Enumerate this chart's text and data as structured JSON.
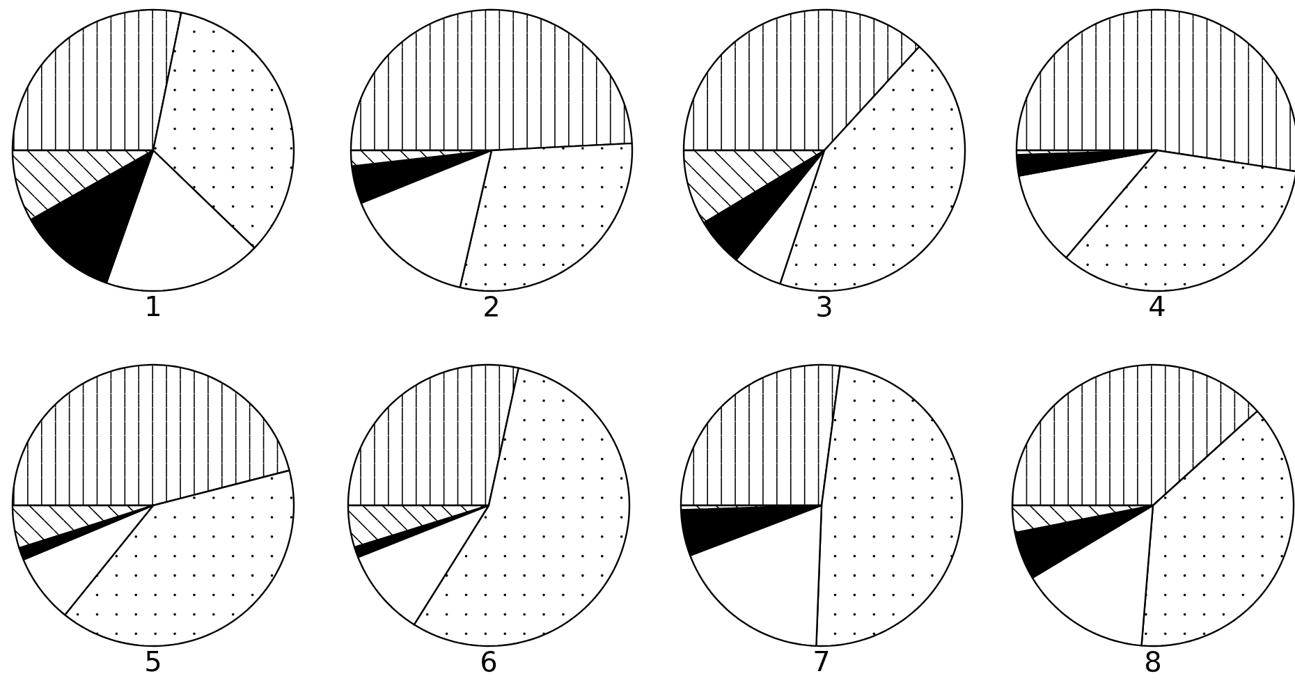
{
  "chart_data": [
    {
      "type": "pie",
      "title": "1",
      "categories": [
        null,
        null,
        null,
        null,
        null
      ],
      "values": [
        28.2,
        34.0,
        18.2,
        11.4,
        8.2
      ],
      "colors": [
        "#ffffff",
        "#ffffff",
        "#ffffff",
        "#000000",
        "#ffffff"
      ]
    },
    {
      "type": "pie",
      "title": "2",
      "categories": [
        null,
        null,
        null,
        null,
        null
      ],
      "values": [
        49.2,
        29.4,
        15.3,
        4.3,
        1.8
      ],
      "colors": [
        "#ffffff",
        "#ffffff",
        "#ffffff",
        "#000000",
        "#ffffff"
      ]
    },
    {
      "type": "pie",
      "title": "3",
      "categories": [
        null,
        null,
        null,
        null,
        null
      ],
      "values": [
        36.8,
        43.3,
        5.7,
        5.6,
        8.6
      ],
      "colors": [
        "#ffffff",
        "#ffffff",
        "#ffffff",
        "#000000",
        "#ffffff"
      ]
    },
    {
      "type": "pie",
      "title": "4",
      "categories": [
        null,
        null,
        null,
        null,
        null
      ],
      "values": [
        52.4,
        33.8,
        10.9,
        2.4,
        0.5
      ],
      "colors": [
        "#ffffff",
        "#ffffff",
        "#ffffff",
        "#000000",
        "#ffffff"
      ]
    },
    {
      "type": "pie",
      "title": "5",
      "categories": [
        null,
        null,
        null,
        null,
        null
      ],
      "values": [
        46.0,
        39.8,
        7.9,
        1.4,
        4.9
      ],
      "colors": [
        "#ffffff",
        "#ffffff",
        "#ffffff",
        "#000000",
        "#ffffff"
      ]
    },
    {
      "type": "pie",
      "title": "6",
      "categories": [
        null,
        null,
        null,
        null,
        null
      ],
      "values": [
        28.4,
        55.5,
        10.1,
        1.2,
        4.8
      ],
      "colors": [
        "#ffffff",
        "#ffffff",
        "#ffffff",
        "#000000",
        "#ffffff"
      ]
    },
    {
      "type": "pie",
      "title": "7",
      "categories": [
        null,
        null,
        null,
        null,
        null
      ],
      "values": [
        27.1,
        48.5,
        18.6,
        5.3,
        0.5
      ],
      "colors": [
        "#ffffff",
        "#ffffff",
        "#ffffff",
        "#000000",
        "#ffffff"
      ]
    },
    {
      "type": "pie",
      "title": "8",
      "categories": [
        null,
        null,
        null,
        null,
        null
      ],
      "values": [
        38.3,
        38.0,
        15.1,
        5.5,
        3.1
      ],
      "colors": [
        "#ffffff",
        "#ffffff",
        "#ffffff",
        "#000000",
        "#ffffff"
      ]
    }
  ]
}
